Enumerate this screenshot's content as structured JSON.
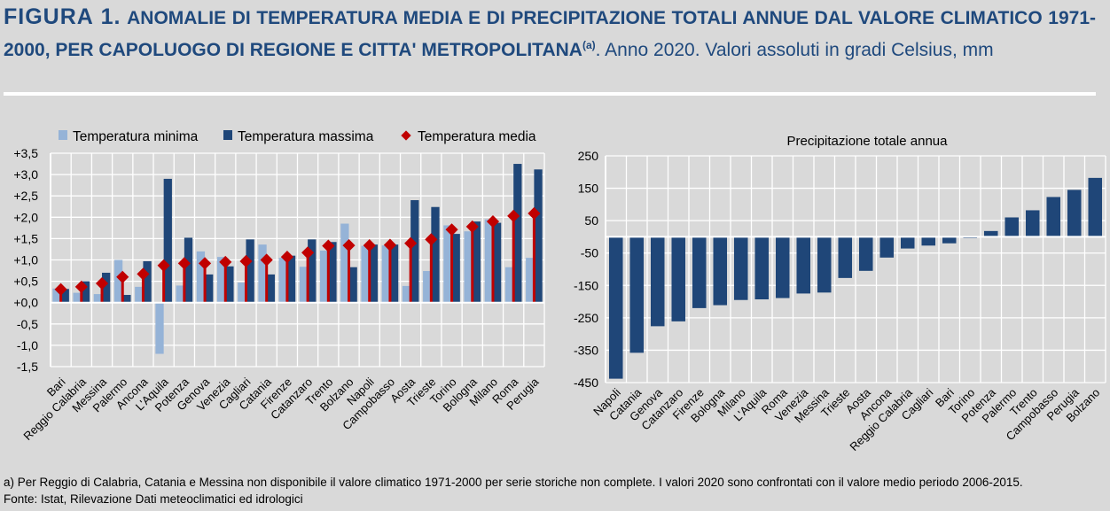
{
  "title": {
    "figure": "FIGURA 1.",
    "bold_text": "ANOMALIE DI TEMPERATURA MEDIA E DI PRECIPITAZIONE TOTALI ANNUE DAL VALORE CLIMATICO 1971-2000, PER CAPOLUOGO DI REGIONE E CITTA' METROPOLITANA",
    "note_mark": "(a)",
    "rest": ". Anno 2020. Valori assoluti in gradi Celsius, mm"
  },
  "colors": {
    "title": "#1f497d",
    "tmin": "#95b3d7",
    "tmax": "#1f4678",
    "tavg": "#c00000",
    "precip": "#1f4678",
    "background": "#d9d9d9"
  },
  "chart_data": [
    {
      "type": "bar",
      "legend_placement": "top",
      "grid": true,
      "ylim": [
        -1.5,
        3.5
      ],
      "yticks": [
        "+3,5",
        "+3,0",
        "+2,5",
        "+2,0",
        "+1,5",
        "+1,0",
        "+0,5",
        "+0,0",
        "-0,5",
        "-1,0",
        "-1,5"
      ],
      "categories": [
        "Bari",
        "Reggio Calabria",
        "Messina",
        "Palermo",
        "Ancona",
        "L'Aquila",
        "Potenza",
        "Genova",
        "Venezia",
        "Cagliari",
        "Catania",
        "Firenze",
        "Catanzaro",
        "Trento",
        "Bolzano",
        "Napoli",
        "Campobasso",
        "Aosta",
        "Trieste",
        "Torino",
        "Bologna",
        "Milano",
        "Roma",
        "Perugia"
      ],
      "series": [
        {
          "name": "Temperatura minima",
          "values": [
            0.33,
            0.23,
            0.2,
            1.0,
            0.37,
            -1.2,
            0.4,
            1.2,
            1.07,
            0.47,
            1.36,
            1.05,
            0.84,
            1.22,
            1.85,
            1.33,
            1.34,
            0.39,
            0.74,
            1.81,
            1.67,
            1.95,
            0.83,
            1.05
          ]
        },
        {
          "name": "Temperatura massima",
          "values": [
            0.32,
            0.5,
            0.7,
            0.18,
            0.97,
            2.9,
            1.52,
            0.66,
            0.85,
            1.48,
            0.66,
            1.1,
            1.48,
            1.42,
            0.83,
            1.36,
            1.36,
            2.4,
            2.24,
            1.61,
            1.9,
            1.87,
            3.25,
            3.12
          ]
        },
        {
          "name": "Temperatura media",
          "values": [
            0.31,
            0.37,
            0.45,
            0.6,
            0.67,
            0.87,
            0.92,
            0.92,
            0.95,
            0.97,
            1.0,
            1.07,
            1.17,
            1.33,
            1.34,
            1.34,
            1.35,
            1.39,
            1.48,
            1.71,
            1.78,
            1.9,
            2.03,
            2.09
          ]
        }
      ]
    },
    {
      "type": "bar",
      "title": "Precipitazione totale annua",
      "grid": true,
      "ylim": [
        -450,
        250
      ],
      "yticks": [
        "250",
        "150",
        "50",
        "-50",
        "-150",
        "-250",
        "-350",
        "-450"
      ],
      "categories": [
        "Napoli",
        "Catania",
        "Genova",
        "Catanzaro",
        "Firenze",
        "Bologna",
        "Milano",
        "L'Aquila",
        "Roma",
        "Venezia",
        "Messina",
        "Trieste",
        "Aosta",
        "Ancona",
        "Reggio Calabria",
        "Cagliari",
        "Bari",
        "Torino",
        "Potenza",
        "Palermo",
        "Trento",
        "Campobasso",
        "Perugia",
        "Bolzano"
      ],
      "values": [
        -438,
        -358,
        -276,
        -261,
        -220,
        -211,
        -195,
        -193,
        -189,
        -175,
        -172,
        -127,
        -105,
        -64,
        -36,
        -27,
        -20,
        -4,
        18,
        60,
        82,
        123,
        145,
        182
      ]
    }
  ],
  "footnote": "a) Per Reggio di Calabria, Catania e Messina non disponibile il valore climatico 1971-2000 per serie storiche non complete. I valori 2020 sono confrontati con il valore medio periodo 2006-2015.",
  "source": "Fonte: Istat, Rilevazione Dati meteoclimatici ed idrologici"
}
